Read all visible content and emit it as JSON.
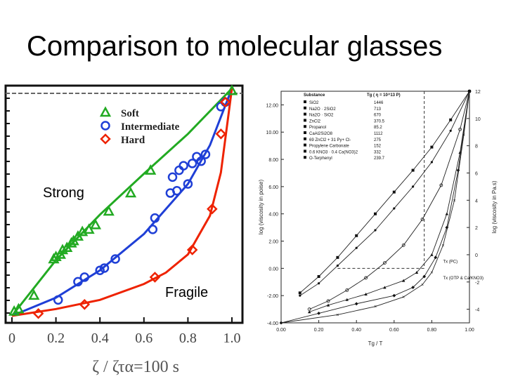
{
  "slide": {
    "title": "Comparison to molecular glasses"
  },
  "annotations": {
    "strong": "Strong",
    "fragile": "Fragile"
  },
  "chart_data": [
    {
      "type": "scatter",
      "x_tick_labels": [
        "0",
        "0.2",
        "0.4",
        "0.6",
        "0.8",
        "1.0"
      ],
      "xlabel": "ζ / ζτα=100 s",
      "xlim": [
        0,
        1.05
      ],
      "ylim": [
        0,
        1
      ],
      "series": [
        {
          "name": "Soft",
          "marker": "triangle",
          "color": "#22aa22",
          "x": [
            0.01,
            0.03,
            0.1,
            0.19,
            0.2,
            0.22,
            0.23,
            0.25,
            0.27,
            0.28,
            0.3,
            0.32,
            0.35,
            0.38,
            0.44,
            0.54,
            0.63,
            1.0
          ],
          "y": [
            0.02,
            0.03,
            0.09,
            0.25,
            0.26,
            0.27,
            0.29,
            0.3,
            0.32,
            0.33,
            0.35,
            0.37,
            0.38,
            0.4,
            0.46,
            0.54,
            0.64,
            0.99
          ],
          "fit_x": [
            0,
            0.2,
            0.4,
            0.6,
            0.8,
            1.0
          ],
          "fit_y": [
            0,
            0.245,
            0.445,
            0.625,
            0.8,
            1.0
          ]
        },
        {
          "name": "Intermediate",
          "marker": "circle",
          "color": "#1f3fd6",
          "x": [
            0.21,
            0.3,
            0.33,
            0.4,
            0.42,
            0.47,
            0.64,
            0.65,
            0.72,
            0.73,
            0.75,
            0.76,
            0.78,
            0.8,
            0.82,
            0.84,
            0.86,
            0.88,
            0.95,
            0.97
          ],
          "y": [
            0.07,
            0.15,
            0.17,
            0.2,
            0.21,
            0.25,
            0.38,
            0.43,
            0.54,
            0.61,
            0.55,
            0.64,
            0.66,
            0.58,
            0.67,
            0.7,
            0.68,
            0.71,
            0.92,
            0.94
          ],
          "fit_x": [
            0,
            0.2,
            0.4,
            0.6,
            0.8,
            0.9,
            1.0
          ],
          "fit_y": [
            0,
            0.08,
            0.2,
            0.36,
            0.58,
            0.75,
            1.0
          ]
        },
        {
          "name": "Hard",
          "marker": "diamond",
          "color": "#ee2200",
          "x": [
            0.12,
            0.33,
            0.65,
            0.82,
            0.91,
            0.95,
            0.97
          ],
          "y": [
            0.01,
            0.05,
            0.17,
            0.29,
            0.47,
            0.8,
            0.94
          ],
          "fit_x": [
            0,
            0.2,
            0.4,
            0.6,
            0.7,
            0.8,
            0.9,
            0.95,
            1.0
          ],
          "fit_y": [
            0,
            0.03,
            0.07,
            0.14,
            0.19,
            0.27,
            0.44,
            0.63,
            1.0
          ]
        }
      ],
      "legend_position": "top-right"
    },
    {
      "type": "line",
      "xlabel": "Tg / T",
      "ylabel_left": "log (viscosity in poise)",
      "ylabel_right": "log (viscosity in Pa.s)",
      "xlim": [
        0,
        1.0
      ],
      "ylim": [
        -4,
        13
      ],
      "x_tick_labels": [
        "0.00",
        "0.20",
        "0.40",
        "0.60",
        "0.80",
        "1.00"
      ],
      "y_tick_labels_left": [
        "-4.00",
        "-2.00",
        "0.00",
        "2.00",
        "4.00",
        "6.00",
        "8.00",
        "10.00",
        "12.00"
      ],
      "y_tick_labels_right": [
        "-4",
        "-2",
        "0",
        "2",
        "4",
        "6",
        "8",
        "10",
        "12"
      ],
      "legend_header": [
        "Substance",
        "Tg ( η = 10^13 P)"
      ],
      "legend": [
        {
          "name": "SiO2",
          "tg": "1446"
        },
        {
          "name": "Na2O · 2SiO2",
          "tg": "713"
        },
        {
          "name": "Na2O · SiO2",
          "tg": "670"
        },
        {
          "name": "ZnCl2",
          "tg": "370.5"
        },
        {
          "name": "Propanol",
          "tg": "85.2"
        },
        {
          "name": "CaAl2Si2O8",
          "tg": "1112"
        },
        {
          "name": "69 ZnCl2 + 31 Py+ Cl-",
          "tg": "275"
        },
        {
          "name": "Propylene Carbonate",
          "tg": "152"
        },
        {
          "name": "0.6 KNO3 · 0.4 Ca(NO3)2",
          "tg": "332"
        },
        {
          "name": "O-Terphenyl",
          "tg": "239.7"
        }
      ],
      "annotations": [
        "Tx (PC)",
        "Tx (OTP & Ca/KNO3)"
      ],
      "series": [
        {
          "x": [
            0.1,
            0.2,
            0.3,
            0.4,
            0.5,
            0.6,
            0.7,
            0.8,
            0.9,
            1.0
          ],
          "y": [
            -1.8,
            -0.6,
            0.8,
            2.4,
            4.0,
            5.6,
            7.2,
            8.9,
            10.9,
            13.0
          ]
        },
        {
          "x": [
            0.1,
            0.2,
            0.3,
            0.4,
            0.5,
            0.6,
            0.7,
            0.8,
            0.9,
            1.0
          ],
          "y": [
            -2.0,
            -1.1,
            0.2,
            1.5,
            2.8,
            4.4,
            6.0,
            7.8,
            10.1,
            13.0
          ]
        },
        {
          "x": [
            0.15,
            0.25,
            0.35,
            0.45,
            0.55,
            0.65,
            0.75,
            0.85,
            0.95,
            1.0
          ],
          "y": [
            -3.0,
            -2.4,
            -1.6,
            -0.7,
            0.4,
            1.7,
            3.6,
            6.1,
            10.2,
            13.0
          ]
        },
        {
          "x": [
            0.15,
            0.25,
            0.35,
            0.45,
            0.55,
            0.65,
            0.72,
            0.8,
            0.88,
            0.95,
            1.0
          ],
          "y": [
            -3.2,
            -2.7,
            -2.3,
            -1.9,
            -1.4,
            -0.9,
            -0.3,
            1.0,
            4.0,
            8.5,
            13.0
          ]
        },
        {
          "x": [
            0.0,
            0.2,
            0.4,
            0.6,
            0.7,
            0.76,
            0.82,
            0.88,
            0.94,
            1.0
          ],
          "y": [
            -4.0,
            -3.3,
            -2.6,
            -2.0,
            -1.4,
            -0.6,
            0.8,
            3.0,
            7.2,
            13.0
          ]
        },
        {
          "x": [
            0.0,
            0.3,
            0.5,
            0.65,
            0.75,
            0.8,
            0.86,
            0.92,
            0.97,
            1.0
          ],
          "y": [
            -4.0,
            -3.4,
            -2.8,
            -2.1,
            -1.2,
            -0.3,
            1.7,
            5.0,
            9.8,
            13.0
          ]
        }
      ]
    }
  ]
}
